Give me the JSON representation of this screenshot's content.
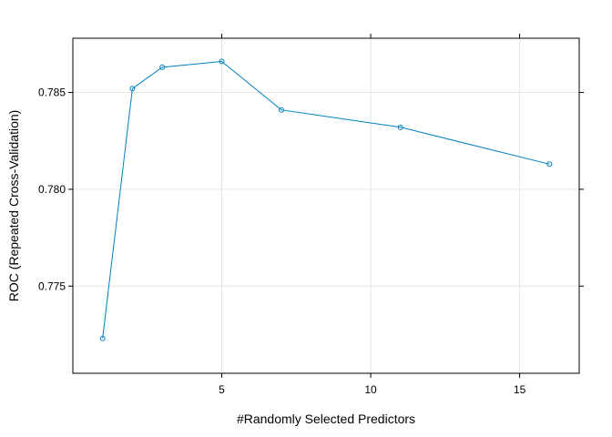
{
  "chart_data": {
    "type": "line",
    "title": "",
    "xlabel": "#Randomly Selected Predictors",
    "ylabel": "ROC (Repeated Cross-Validation)",
    "xlim": [
      0.0,
      17.0
    ],
    "ylim": [
      0.7705,
      0.7878
    ],
    "x_ticks": [
      5,
      10,
      15
    ],
    "x_tick_labels": [
      "5",
      "10",
      "15"
    ],
    "y_ticks": [
      0.775,
      0.78,
      0.785
    ],
    "y_tick_labels": [
      "0.775",
      "0.780",
      "0.785"
    ],
    "grid": true,
    "series": [
      {
        "x": [
          1,
          2,
          3,
          5,
          7,
          11,
          16
        ],
        "y": [
          0.7723,
          0.7852,
          0.7863,
          0.7866,
          0.7841,
          0.7832,
          0.7813
        ]
      }
    ],
    "colors": {
      "line": "#0080C0",
      "grid": "#E6E6E6",
      "axis": "#000000"
    }
  }
}
